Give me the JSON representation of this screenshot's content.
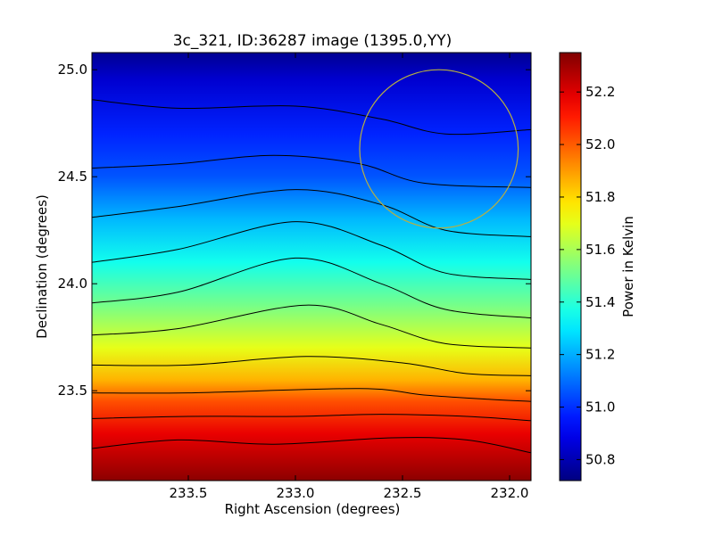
{
  "chart_data": {
    "type": "heatmap",
    "title": "3c_321, ID:36287 image (1395.0,YY)",
    "xlabel": "Right Ascension (degrees)",
    "ylabel": "Declination (degrees)",
    "colorbar_label": "Power in Kelvin",
    "colormap": "jet",
    "x_axis": {
      "direction": "reversed",
      "range": [
        233.95,
        231.9
      ],
      "ticks": [
        233.5,
        233.0,
        232.5,
        232.0
      ],
      "tick_labels": [
        "233.5",
        "233.0",
        "232.5",
        "232.0"
      ]
    },
    "y_axis": {
      "range": [
        23.08,
        25.08
      ],
      "ticks": [
        23.5,
        24.0,
        24.5,
        25.0
      ],
      "tick_labels": [
        "23.5",
        "24.0",
        "24.5",
        "25.0"
      ]
    },
    "colorbar": {
      "range": [
        50.72,
        52.35
      ],
      "ticks": [
        50.8,
        51.0,
        51.2,
        51.4,
        51.6,
        51.8,
        52.0,
        52.2
      ],
      "tick_labels": [
        "50.8",
        "51.0",
        "51.2",
        "51.4",
        "51.6",
        "51.8",
        "52.0",
        "52.2"
      ]
    },
    "color_gradient_by_dec": [
      {
        "dec": 25.08,
        "value": 50.75
      },
      {
        "dec": 24.95,
        "value": 50.85
      },
      {
        "dec": 24.7,
        "value": 50.98
      },
      {
        "dec": 24.5,
        "value": 51.06
      },
      {
        "dec": 24.3,
        "value": 51.22
      },
      {
        "dec": 24.1,
        "value": 51.36
      },
      {
        "dec": 23.9,
        "value": 51.52
      },
      {
        "dec": 23.7,
        "value": 51.7
      },
      {
        "dec": 23.55,
        "value": 51.86
      },
      {
        "dec": 23.45,
        "value": 52.02
      },
      {
        "dec": 23.3,
        "value": 52.18
      },
      {
        "dec": 23.15,
        "value": 52.28
      },
      {
        "dec": 23.08,
        "value": 52.33
      }
    ],
    "contours": [
      {
        "points": [
          [
            233.95,
            24.86
          ],
          [
            233.55,
            24.82
          ],
          [
            233.0,
            24.83
          ],
          [
            232.6,
            24.77
          ],
          [
            232.3,
            24.7
          ],
          [
            231.9,
            24.72
          ]
        ]
      },
      {
        "points": [
          [
            233.95,
            24.54
          ],
          [
            233.55,
            24.56
          ],
          [
            233.1,
            24.6
          ],
          [
            232.7,
            24.56
          ],
          [
            232.4,
            24.47
          ],
          [
            231.9,
            24.45
          ]
        ]
      },
      {
        "points": [
          [
            233.95,
            24.31
          ],
          [
            233.55,
            24.36
          ],
          [
            233.0,
            24.44
          ],
          [
            232.6,
            24.37
          ],
          [
            232.3,
            24.25
          ],
          [
            231.9,
            24.22
          ]
        ]
      },
      {
        "points": [
          [
            233.95,
            24.1
          ],
          [
            233.55,
            24.16
          ],
          [
            233.0,
            24.29
          ],
          [
            232.6,
            24.18
          ],
          [
            232.3,
            24.05
          ],
          [
            231.9,
            24.02
          ]
        ]
      },
      {
        "points": [
          [
            233.95,
            23.91
          ],
          [
            233.55,
            23.96
          ],
          [
            233.0,
            24.12
          ],
          [
            232.6,
            24.0
          ],
          [
            232.3,
            23.88
          ],
          [
            231.9,
            23.84
          ]
        ]
      },
      {
        "points": [
          [
            233.95,
            23.76
          ],
          [
            233.55,
            23.79
          ],
          [
            232.95,
            23.9
          ],
          [
            232.6,
            23.81
          ],
          [
            232.3,
            23.72
          ],
          [
            231.9,
            23.7
          ]
        ]
      },
      {
        "points": [
          [
            233.95,
            23.62
          ],
          [
            233.5,
            23.62
          ],
          [
            232.95,
            23.66
          ],
          [
            232.5,
            23.63
          ],
          [
            232.2,
            23.58
          ],
          [
            231.9,
            23.57
          ]
        ]
      },
      {
        "points": [
          [
            233.95,
            23.49
          ],
          [
            233.5,
            23.49
          ],
          [
            232.7,
            23.51
          ],
          [
            232.4,
            23.48
          ],
          [
            232.1,
            23.46
          ],
          [
            231.9,
            23.45
          ]
        ]
      },
      {
        "points": [
          [
            233.95,
            23.37
          ],
          [
            233.5,
            23.38
          ],
          [
            233.0,
            23.38
          ],
          [
            232.6,
            23.39
          ],
          [
            232.2,
            23.38
          ],
          [
            231.9,
            23.36
          ]
        ]
      },
      {
        "points": [
          [
            233.95,
            23.23
          ],
          [
            233.55,
            23.27
          ],
          [
            233.1,
            23.25
          ],
          [
            232.55,
            23.28
          ],
          [
            232.2,
            23.27
          ],
          [
            231.9,
            23.21
          ]
        ]
      }
    ],
    "circle": {
      "center_ra": 232.33,
      "center_dec": 24.63,
      "radius_dec": 0.37,
      "color": "#b8b040"
    }
  }
}
